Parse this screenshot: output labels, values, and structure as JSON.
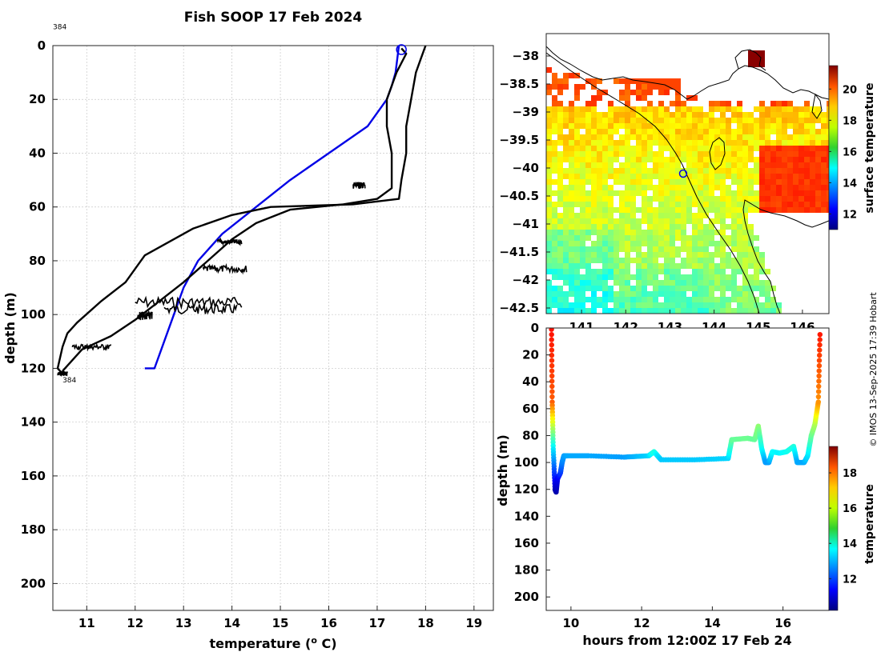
{
  "title": "Fish SOOP 17 Feb 2024",
  "credit": "© IMOS 13-Sep-2025 17:39 Hobart",
  "colors": {
    "black": "#000000",
    "blue": "#0000e6",
    "grid": "#c8c8c8"
  },
  "chart_data": [
    {
      "name": "profile",
      "type": "line",
      "xlabel": "temperature (° C)",
      "ylabel": "depth (m)",
      "xlim": [
        10.3,
        19.4
      ],
      "ylim": [
        210,
        0
      ],
      "xticks": [
        11,
        12,
        13,
        14,
        15,
        16,
        17,
        18,
        19
      ],
      "yticks": [
        0,
        20,
        40,
        60,
        80,
        100,
        120,
        140,
        160,
        180,
        200
      ],
      "grid": true,
      "annotations": [
        {
          "text": "384",
          "x": 10.3,
          "y": -4
        },
        {
          "text": "384",
          "x": 10.5,
          "y": 124
        }
      ],
      "marker": {
        "x": 17.5,
        "y": 1.5,
        "label": "station marker"
      },
      "series": [
        {
          "name": "climatology",
          "color": "#0000e6",
          "x": [
            17.45,
            17.38,
            17.3,
            17.2,
            16.8,
            16.0,
            15.2,
            14.5,
            13.8,
            13.3,
            13.0,
            12.8,
            12.6,
            12.4,
            12.2
          ],
          "y": [
            0,
            10,
            15,
            20,
            30,
            40,
            50,
            60,
            70,
            80,
            90,
            100,
            110,
            120,
            120
          ]
        },
        {
          "name": "descent",
          "color": "#000000",
          "x": [
            18.0,
            17.9,
            17.8,
            17.7,
            17.6,
            17.6,
            17.5,
            17.45,
            16.5,
            14.8,
            14.0,
            13.2,
            12.2,
            11.8,
            11.3,
            10.8,
            10.6,
            10.5,
            10.4,
            10.5
          ],
          "y": [
            0,
            5,
            10,
            20,
            30,
            40,
            50,
            57,
            59,
            60,
            63,
            68,
            78,
            88,
            95,
            103,
            107,
            112,
            120,
            122
          ]
        },
        {
          "name": "ascent",
          "color": "#000000",
          "x": [
            10.5,
            10.9,
            11.5,
            12.0,
            12.5,
            13.0,
            13.5,
            14.0,
            14.5,
            15.2,
            16.3,
            17.0,
            17.3,
            17.3,
            17.2,
            17.2,
            17.4,
            17.6,
            17.5
          ],
          "y": [
            121,
            113,
            108,
            102,
            95,
            88,
            80,
            72,
            66,
            61,
            59,
            57,
            53,
            40,
            30,
            20,
            10,
            3,
            1
          ]
        }
      ]
    },
    {
      "name": "map",
      "type": "heatmap",
      "xlim": [
        140.2,
        146.6
      ],
      "ylim": [
        -42.6,
        -37.6
      ],
      "xticks": [
        141,
        142,
        143,
        144,
        145,
        146
      ],
      "yticks": [
        -38,
        -38.5,
        -39,
        -39.5,
        -40,
        -40.5,
        -41,
        -41.5,
        -42,
        -42.5
      ],
      "colorbar": {
        "label": "surface temperature",
        "min": 11,
        "max": 21.5,
        "ticks": [
          12,
          14,
          16,
          18,
          20
        ]
      },
      "marker": {
        "lon": 143.3,
        "lat": -40.1
      }
    },
    {
      "name": "section",
      "type": "scatter",
      "xlabel": "hours from 12:00Z 17 Feb 24",
      "ylabel": "depth (m)",
      "xlim": [
        9.3,
        17.3
      ],
      "ylim": [
        210,
        0
      ],
      "xticks": [
        10,
        12,
        14,
        16
      ],
      "yticks": [
        0,
        20,
        40,
        60,
        80,
        100,
        120,
        140,
        160,
        180,
        200
      ],
      "colorbar": {
        "label": "temperature",
        "min": 10.2,
        "max": 19.5,
        "ticks": [
          12,
          14,
          16,
          18
        ]
      },
      "track": {
        "t": [
          9.45,
          9.47,
          9.5,
          9.55,
          9.58,
          9.62,
          9.7,
          9.75,
          9.8,
          9.9,
          10.5,
          11.5,
          12.2,
          12.35,
          12.45,
          12.55,
          13.5,
          14.45,
          14.55,
          15.0,
          15.2,
          15.3,
          15.4,
          15.5,
          15.6,
          15.7,
          15.9,
          16.1,
          16.3,
          16.4,
          16.6,
          16.7,
          16.8,
          16.9,
          17.0,
          17.05
        ],
        "depth": [
          1,
          55,
          90,
          120,
          122,
          112,
          108,
          100,
          95,
          95,
          95,
          96,
          95,
          92,
          95,
          98,
          98,
          97,
          83,
          82,
          83,
          73,
          90,
          100,
          100,
          92,
          93,
          92,
          88,
          100,
          100,
          95,
          80,
          72,
          55,
          1
        ],
        "temp": [
          18.2,
          17.5,
          13.5,
          10.8,
          10.6,
          11.2,
          11.8,
          12.5,
          12.8,
          12.9,
          12.9,
          12.8,
          13.3,
          14.0,
          13.5,
          13.2,
          13.2,
          13.3,
          14.6,
          14.7,
          14.6,
          15.0,
          13.8,
          12.8,
          12.8,
          13.7,
          13.6,
          13.8,
          14.0,
          12.9,
          12.9,
          13.4,
          14.6,
          15.2,
          17.0,
          18.2
        ]
      }
    }
  ]
}
